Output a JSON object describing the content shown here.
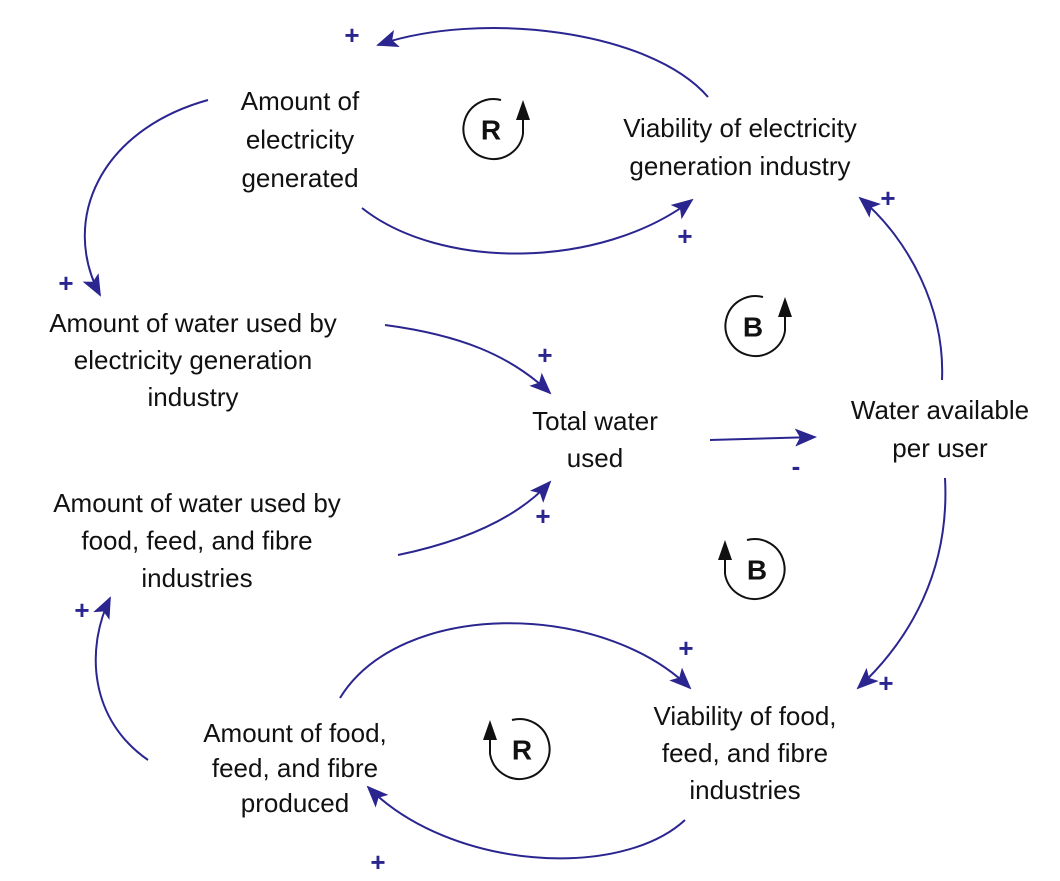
{
  "nodes": [
    {
      "lines": [
        "Amount of",
        "electricity",
        "generated"
      ]
    },
    {
      "lines": [
        "Viability of electricity",
        "generation industry"
      ]
    },
    {
      "lines": [
        "Amount of water used by",
        "electricity generation",
        "industry"
      ]
    },
    {
      "lines": [
        "Total water",
        "used"
      ]
    },
    {
      "lines": [
        "Water available",
        "per user"
      ]
    },
    {
      "lines": [
        "Amount of water used by",
        "food, feed, and fibre",
        "industries"
      ]
    },
    {
      "lines": [
        "Amount of food,",
        "feed, and fibre",
        "produced"
      ]
    },
    {
      "lines": [
        "Viability of food,",
        "feed, and fibre",
        "industries"
      ]
    }
  ],
  "links": [
    {
      "polarity": "+"
    },
    {
      "polarity": "+"
    },
    {
      "polarity": "+"
    },
    {
      "polarity": "+"
    },
    {
      "polarity": "+"
    },
    {
      "polarity": "-"
    },
    {
      "polarity": "+"
    },
    {
      "polarity": "+"
    },
    {
      "polarity": "+"
    },
    {
      "polarity": "+"
    },
    {
      "polarity": "+"
    }
  ],
  "loops": [
    {
      "label": "R"
    },
    {
      "label": "B"
    },
    {
      "label": "B"
    },
    {
      "label": "R"
    }
  ]
}
